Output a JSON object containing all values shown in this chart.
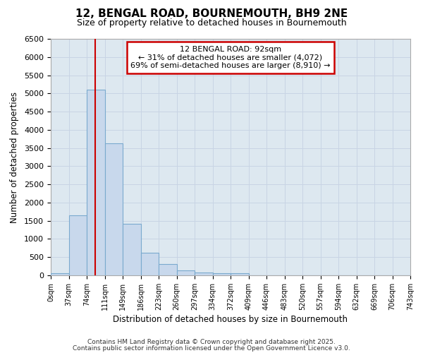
{
  "title_line1": "12, BENGAL ROAD, BOURNEMOUTH, BH9 2NE",
  "title_line2": "Size of property relative to detached houses in Bournemouth",
  "xlabel": "Distribution of detached houses by size in Bournemouth",
  "ylabel": "Number of detached properties",
  "bin_labels": [
    "0sqm",
    "37sqm",
    "74sqm",
    "111sqm",
    "149sqm",
    "186sqm",
    "223sqm",
    "260sqm",
    "297sqm",
    "334sqm",
    "372sqm",
    "409sqm",
    "446sqm",
    "483sqm",
    "520sqm",
    "557sqm",
    "594sqm",
    "632sqm",
    "669sqm",
    "706sqm",
    "743sqm"
  ],
  "bar_values": [
    60,
    1650,
    5100,
    3620,
    1420,
    620,
    310,
    140,
    80,
    55,
    50,
    0,
    0,
    0,
    0,
    0,
    0,
    0,
    0,
    0
  ],
  "bar_color": "#c8d8ec",
  "bar_edgecolor": "#7aaace",
  "bar_linewidth": 0.8,
  "annotation_line1": "12 BENGAL ROAD: 92sqm",
  "annotation_line2": "← 31% of detached houses are smaller (4,072)",
  "annotation_line3": "69% of semi-detached houses are larger (8,910) →",
  "vline_color": "#cc0000",
  "ylim": [
    0,
    6500
  ],
  "yticks": [
    0,
    500,
    1000,
    1500,
    2000,
    2500,
    3000,
    3500,
    4000,
    4500,
    5000,
    5500,
    6000,
    6500
  ],
  "grid_color": "#c8d4e4",
  "bg_color": "#dde8f0",
  "footer_line1": "Contains HM Land Registry data © Crown copyright and database right 2025.",
  "footer_line2": "Contains public sector information licensed under the Open Government Licence v3.0."
}
